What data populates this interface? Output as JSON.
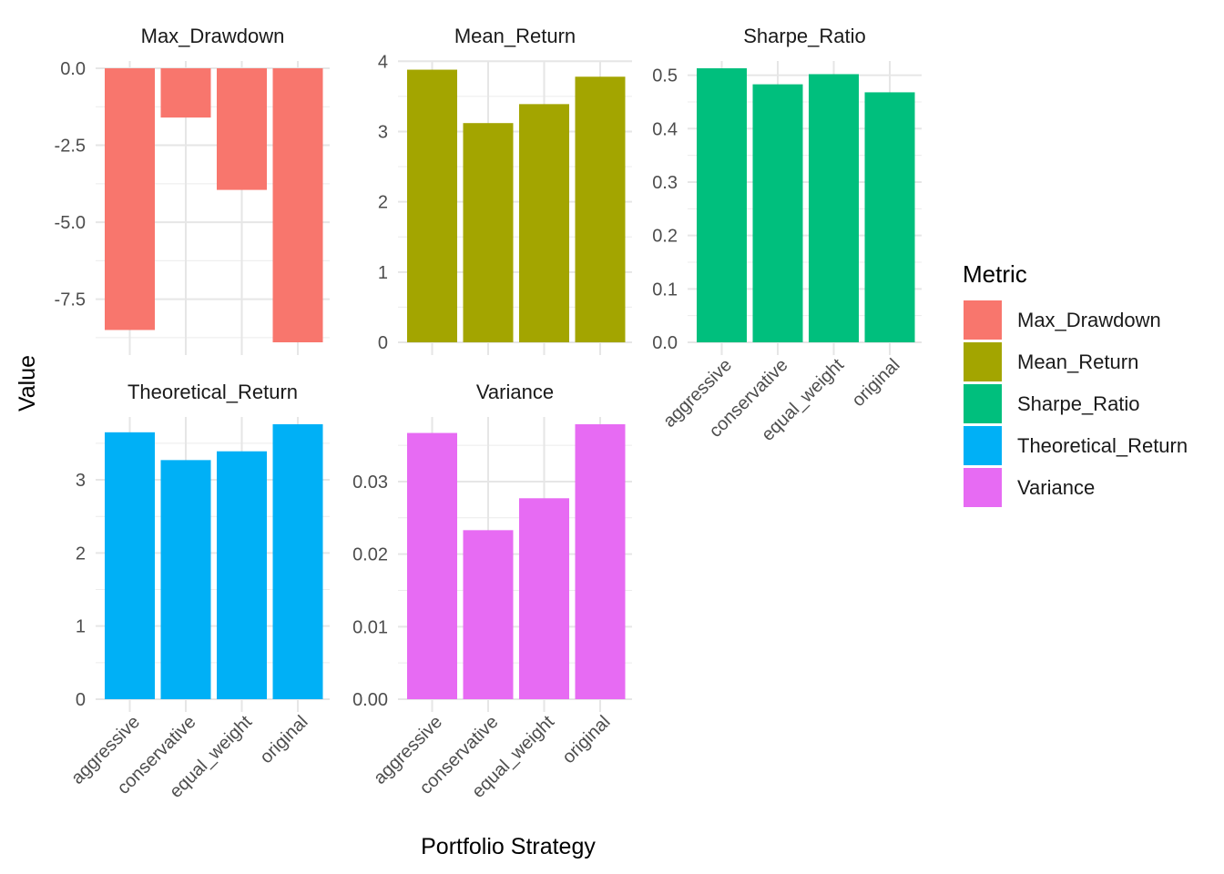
{
  "chart_data": {
    "type": "bar",
    "layout": "facet_wrap",
    "xlabel": "Portfolio Strategy",
    "ylabel": "Value",
    "legend": {
      "title": "Metric",
      "position": "right"
    },
    "categories": [
      "aggressive",
      "conservative",
      "equal_weight",
      "original"
    ],
    "facets": [
      {
        "name": "Max_Drawdown",
        "color": "#F8766D",
        "values": [
          -8.5,
          -1.6,
          -3.95,
          -8.9
        ],
        "ylim": [
          -8.9,
          0.0
        ],
        "ticks": [
          0,
          -2.5,
          -5,
          -7.5
        ],
        "tick_labels": [
          "0.0",
          "-2.5",
          "-5.0",
          "-7.5"
        ]
      },
      {
        "name": "Mean_Return",
        "color": "#A3A500",
        "values": [
          3.88,
          3.12,
          3.39,
          3.78
        ],
        "ylim": [
          0,
          3.9
        ],
        "ticks": [
          0,
          1,
          2,
          3,
          4
        ],
        "tick_labels": [
          "0",
          "1",
          "2",
          "3",
          "4"
        ]
      },
      {
        "name": "Sharpe_Ratio",
        "color": "#00BF7D",
        "values": [
          0.513,
          0.483,
          0.502,
          0.468
        ],
        "ylim": [
          0,
          0.513
        ],
        "ticks": [
          0,
          0.1,
          0.2,
          0.3,
          0.4,
          0.5
        ],
        "tick_labels": [
          "0.0",
          "0.1",
          "0.2",
          "0.3",
          "0.4",
          "0.5"
        ]
      },
      {
        "name": "Theoretical_Return",
        "color": "#00B0F6",
        "values": [
          3.65,
          3.27,
          3.39,
          3.76
        ],
        "ylim": [
          0,
          3.76
        ],
        "ticks": [
          0,
          1,
          2,
          3
        ],
        "tick_labels": [
          "0",
          "1",
          "2",
          "3"
        ]
      },
      {
        "name": "Variance",
        "color": "#E76BF3",
        "values": [
          0.0367,
          0.0233,
          0.0277,
          0.0379
        ],
        "ylim": [
          0,
          0.0379
        ],
        "ticks": [
          0,
          0.01,
          0.02,
          0.03
        ],
        "tick_labels": [
          "0.00",
          "0.01",
          "0.02",
          "0.03"
        ]
      }
    ],
    "grid": true
  }
}
